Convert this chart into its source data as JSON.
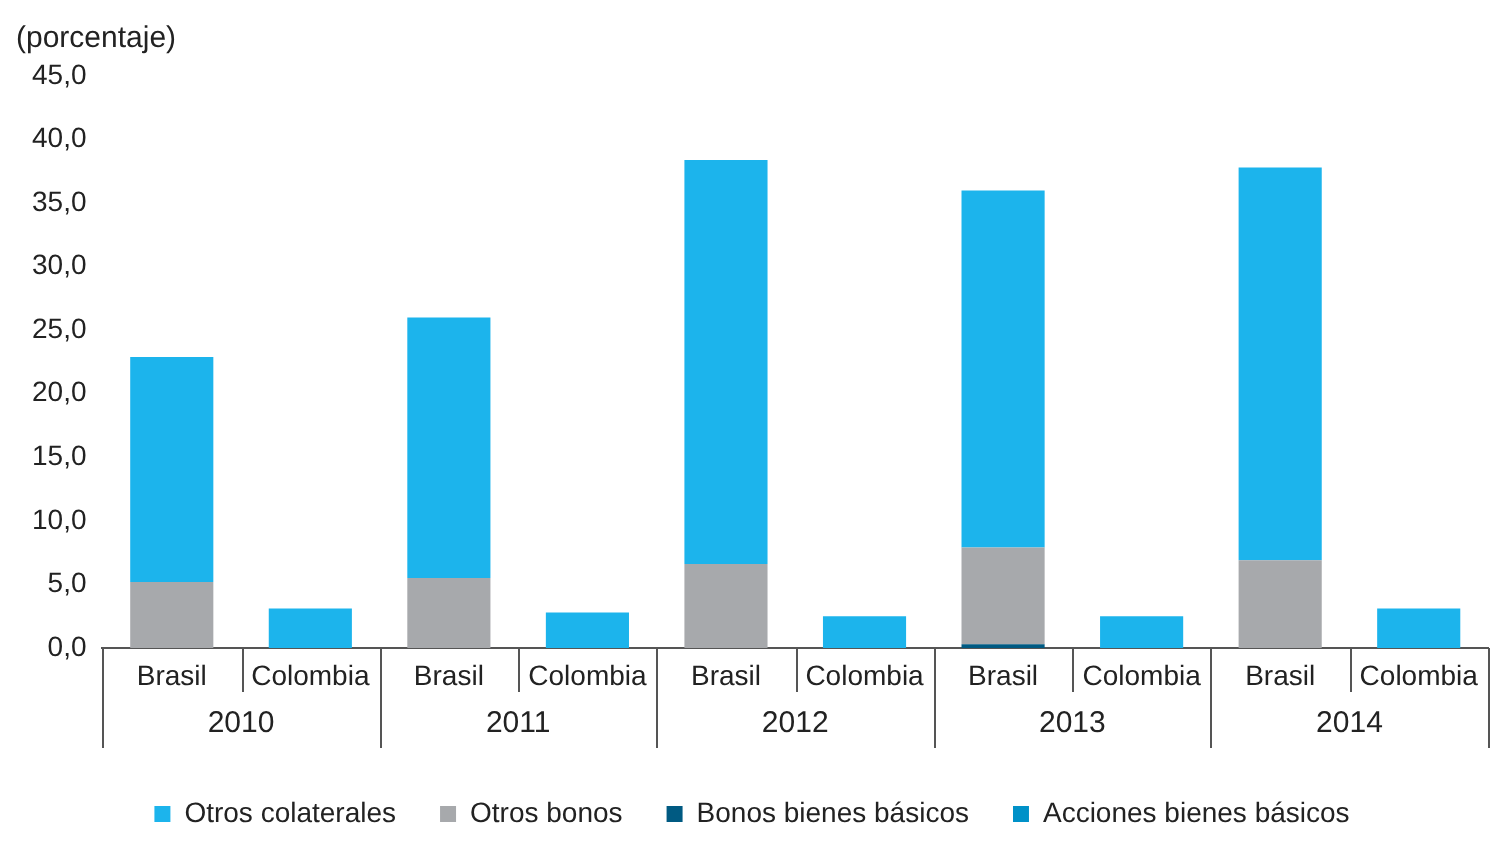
{
  "chart_data": {
    "type": "bar",
    "stacked": true,
    "ylabel": "(porcentaje)",
    "categories": [
      "Brasil",
      "Colombia",
      "Brasil",
      "Colombia",
      "Brasil",
      "Colombia",
      "Brasil",
      "Colombia",
      "Brasil",
      "Colombia"
    ],
    "annotations": [
      "2010",
      "2011",
      "2012",
      "2013",
      "2014"
    ],
    "series": [
      {
        "name": "Acciones bienes básicos",
        "color": "#0091c8",
        "values": [
          0,
          0,
          0,
          0,
          0,
          0,
          0,
          0,
          0,
          0
        ]
      },
      {
        "name": "Bonos bienes básicos",
        "color": "#005a82",
        "values": [
          0,
          0,
          0,
          0,
          0,
          0,
          0.3,
          0,
          0,
          0
        ]
      },
      {
        "name": "Otros bonos",
        "color": "#a7a9ac",
        "values": [
          5.2,
          0,
          5.5,
          0,
          6.6,
          0,
          7.6,
          0,
          6.9,
          0
        ]
      },
      {
        "name": "Otros colaterales",
        "color": "#1cb4ec",
        "values": [
          17.7,
          3.1,
          20.5,
          2.8,
          31.8,
          2.5,
          28.1,
          2.5,
          30.9,
          3.1
        ]
      }
    ],
    "ylim": [
      0,
      45
    ],
    "yticks": [
      {
        "value": 0,
        "label": "0,0"
      },
      {
        "value": 5,
        "label": "5,0"
      },
      {
        "value": 10,
        "label": "10,0"
      },
      {
        "value": 15,
        "label": "15,0"
      },
      {
        "value": 20,
        "label": "20,0"
      },
      {
        "value": 25,
        "label": "25,0"
      },
      {
        "value": 30,
        "label": "30,0"
      },
      {
        "value": 35,
        "label": "35,0"
      },
      {
        "value": 40,
        "label": "40,0"
      },
      {
        "value": 45,
        "label": "45,0"
      }
    ],
    "grid": false,
    "legend": "bottom"
  }
}
